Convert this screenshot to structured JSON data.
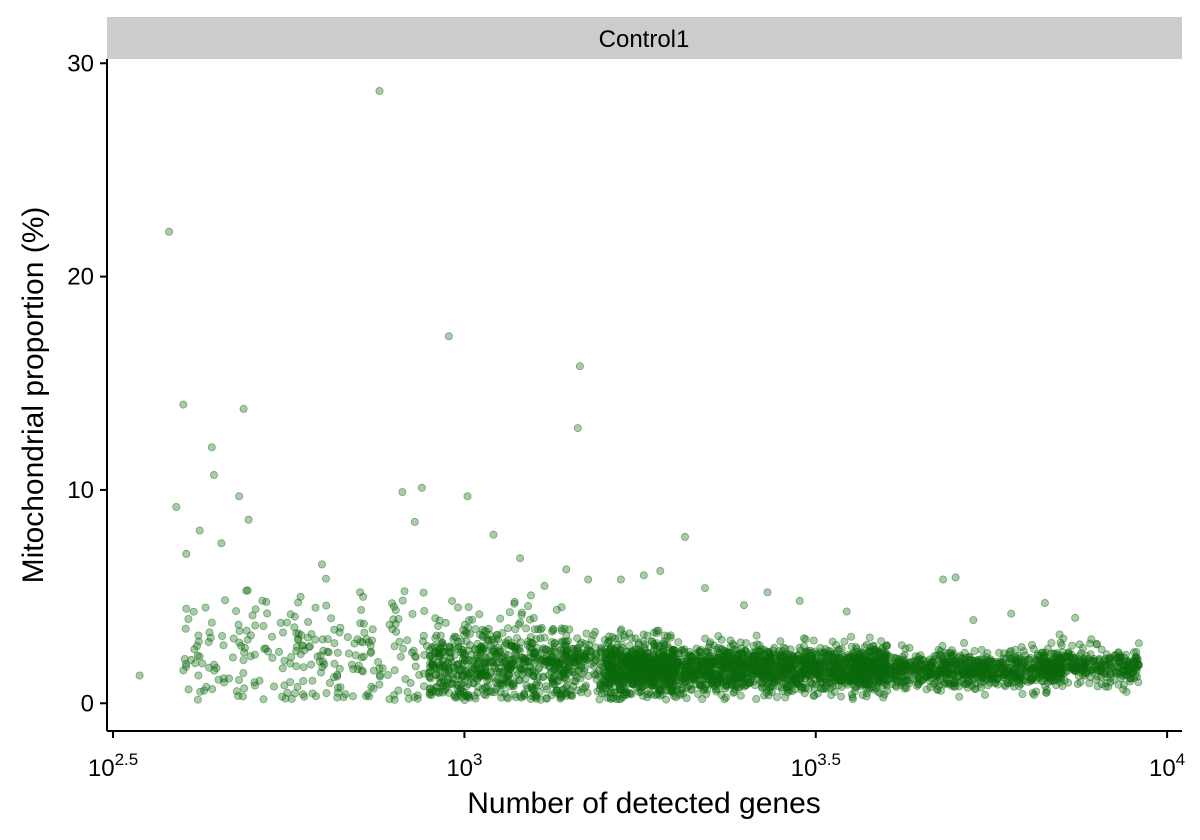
{
  "chart_data": {
    "type": "scatter",
    "facet_label": "Control1",
    "xlabel": "Number of detected genes",
    "ylabel": "Mitochondrial proportion (%)",
    "x_scale": "log10",
    "xlim": [
      310,
      10500
    ],
    "ylim": [
      -1.3,
      30.2
    ],
    "x_ticks": [
      {
        "value": 316.2,
        "base": "10",
        "exp": "2.5"
      },
      {
        "value": 1000,
        "base": "10",
        "exp": "3"
      },
      {
        "value": 3162.3,
        "base": "10",
        "exp": "3.5"
      },
      {
        "value": 10000,
        "base": "10",
        "exp": "4"
      }
    ],
    "y_ticks": [
      {
        "value": 0,
        "label": "0"
      },
      {
        "value": 10,
        "label": "10"
      },
      {
        "value": 20,
        "label": "20"
      },
      {
        "value": 30,
        "label": "30"
      }
    ],
    "point_color": "#0b6a0b",
    "point_alpha": 0.35,
    "grid": false,
    "legend": "none",
    "series": [
      {
        "points": [
          [
            345,
            1.3
          ],
          [
            380,
            22.1
          ],
          [
            398,
            14.0
          ],
          [
            437,
            12.0
          ],
          [
            440,
            10.7
          ],
          [
            485,
            13.8
          ],
          [
            757,
            28.7
          ],
          [
            950,
            17.2
          ],
          [
            1460,
            15.8
          ],
          [
            1450,
            12.9
          ],
          [
            816,
            9.9
          ],
          [
            870,
            10.1
          ],
          [
            1010,
            9.7
          ],
          [
            389,
            9.2
          ],
          [
            478,
            9.7
          ],
          [
            493,
            8.6
          ],
          [
            451,
            7.5
          ],
          [
            402,
            7.0
          ],
          [
            420,
            8.1
          ],
          [
            850,
            8.5
          ],
          [
            1670,
            5.8
          ],
          [
            1800,
            6.0
          ],
          [
            2060,
            7.8
          ],
          [
            2700,
            5.2
          ],
          [
            4800,
            5.8
          ],
          [
            5000,
            5.9
          ],
          [
            6700,
            4.7
          ],
          [
            7400,
            4.0
          ],
          [
            8800,
            1.5
          ],
          [
            8300,
            1.8
          ],
          [
            3500,
            4.3
          ],
          [
            3000,
            4.8
          ],
          [
            2500,
            4.6
          ],
          [
            6000,
            4.2
          ],
          [
            5300,
            3.9
          ],
          [
            7800,
            3.0
          ],
          [
            1200,
            6.8
          ],
          [
            1100,
            7.9
          ],
          [
            1300,
            5.5
          ],
          [
            1500,
            5.8
          ],
          [
            1900,
            6.2
          ],
          [
            2200,
            5.4
          ]
        ],
        "clusters": [
          {
            "n": 380,
            "log_x_min": 2.6,
            "log_x_max": 3.15,
            "y_mean": 2.4,
            "y_spread": 1.6,
            "y_skew": 2.2
          },
          {
            "n": 900,
            "log_x_min": 2.95,
            "log_x_max": 3.3,
            "y_mean": 1.8,
            "y_spread": 0.9,
            "y_skew": 1.3
          },
          {
            "n": 1800,
            "log_x_min": 3.2,
            "log_x_max": 3.6,
            "y_mean": 1.6,
            "y_spread": 0.55,
            "y_skew": 0.9
          },
          {
            "n": 900,
            "log_x_min": 3.55,
            "log_x_max": 3.85,
            "y_mean": 1.6,
            "y_spread": 0.45,
            "y_skew": 0.7
          },
          {
            "n": 320,
            "log_x_min": 3.82,
            "log_x_max": 3.96,
            "y_mean": 1.8,
            "y_spread": 0.45,
            "y_skew": 0.6
          }
        ]
      }
    ]
  }
}
